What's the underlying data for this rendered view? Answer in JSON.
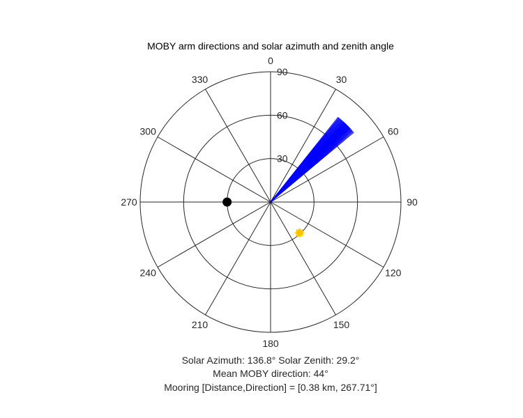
{
  "chart_data": {
    "type": "polar",
    "title": "MOBY arm directions and solar azimuth and zenith angle",
    "theta_zero_location": "top",
    "theta_direction": "clockwise",
    "theta_tick_labels": [
      "0",
      "30",
      "60",
      "90",
      "120",
      "150",
      "180",
      "210",
      "240",
      "270",
      "300",
      "330"
    ],
    "r_tick_labels": [
      "30",
      "60",
      "90"
    ],
    "r_label_angle_deg": 0,
    "rlim": [
      0,
      90
    ],
    "grid": true,
    "series": [
      {
        "type": "line",
        "color": "#0000ff",
        "r": 75,
        "theta_deg": [
          38.5,
          39.0,
          39.4,
          39.8,
          40.2,
          40.6,
          41.0,
          41.3,
          41.6,
          42.0,
          42.3,
          42.6,
          42.9,
          43.2,
          43.5,
          43.8,
          44.0,
          44.2,
          44.5,
          44.7,
          45.0,
          45.2,
          45.5,
          45.7,
          46.0,
          46.2,
          46.5,
          46.8,
          47.1,
          47.4,
          47.8,
          48.2,
          48.6,
          49.0,
          49.5,
          50.0
        ]
      },
      {
        "type": "marker",
        "marker": "filled-circle",
        "color": "#000000",
        "theta_deg": 270,
        "r": 30
      },
      {
        "type": "marker",
        "marker": "sun",
        "color": "#ffc000",
        "edge_color": "#ffd700",
        "theta_deg": 136.8,
        "r": 29.2
      }
    ],
    "annotations": [
      "Solar Azimuth: 136.8°    Solar Zenith: 29.2°",
      "Mean MOBY direction: 44°",
      "Mooring [Distance,Direction] = [0.38 km, 267.71°]"
    ]
  }
}
